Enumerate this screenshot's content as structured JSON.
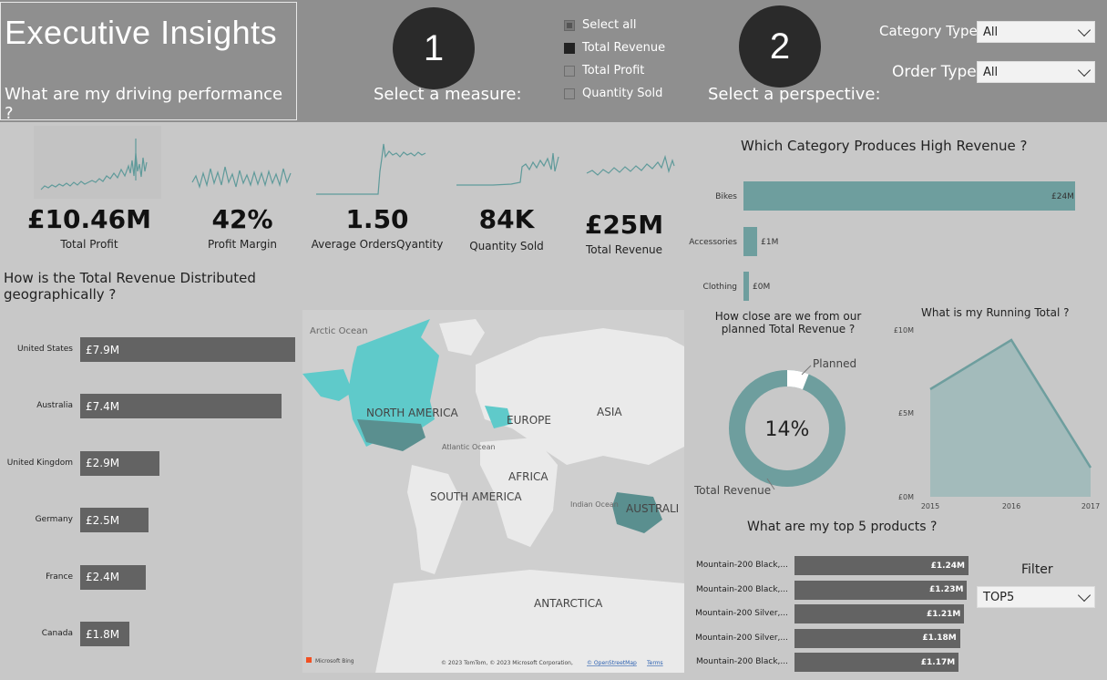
{
  "header": {
    "title": "Executive Insights",
    "subtitle": "What are my driving performance ?",
    "step1_number": "1",
    "step1_label": "Select a measure:",
    "step2_number": "2",
    "step2_label": "Select a perspective:",
    "measures": [
      {
        "label": "Select all",
        "state": "partial"
      },
      {
        "label": "Total Revenue",
        "state": "checked"
      },
      {
        "label": "Total Profit",
        "state": "unchecked"
      },
      {
        "label": "Quantity Sold",
        "state": "unchecked"
      }
    ],
    "category_type_label": "Category Type",
    "category_type_value": "All",
    "order_type_label": "Order Type",
    "order_type_value": "All"
  },
  "kpis": [
    {
      "value": "£10.46M",
      "label": "Total Profit"
    },
    {
      "value": "42%",
      "label": "Profit Margin"
    },
    {
      "value": "1.50",
      "label": "Average OrdersQyantity"
    },
    {
      "value": "84K",
      "label": "Quantity Sold"
    },
    {
      "value": "£25M",
      "label": "Total Revenue"
    }
  ],
  "geo": {
    "title": "How is the Total Revenue Distributed geographically ?",
    "max": 7.9,
    "rows": [
      {
        "country": "United States",
        "value": 7.9,
        "label": "£7.9M"
      },
      {
        "country": "Australia",
        "value": 7.4,
        "label": "£7.4M"
      },
      {
        "country": "United Kingdom",
        "value": 2.9,
        "label": "£2.9M"
      },
      {
        "country": "Germany",
        "value": 2.5,
        "label": "£2.5M"
      },
      {
        "country": "France",
        "value": 2.4,
        "label": "£2.4M"
      },
      {
        "country": "Canada",
        "value": 1.8,
        "label": "£1.8M"
      }
    ]
  },
  "map": {
    "labels": {
      "arctic": "Arctic Ocean",
      "north_america": "NORTH AMERICA",
      "europe": "EUROPE",
      "asia": "ASIA",
      "atlantic": "Atlantic Ocean",
      "africa": "AFRICA",
      "south_america": "SOUTH AMERICA",
      "indian": "Indian Ocean",
      "australia": "AUSTRALI",
      "antarctica": "ANTARCTICA"
    },
    "brand": "Microsoft Bing",
    "copyright": "© 2023 TomTom, © 2023 Microsoft Corporation,",
    "osm_link": "© OpenStreetMap",
    "terms_link": "Terms"
  },
  "category": {
    "title": "Which Category Produces High Revenue ?",
    "max": 24,
    "rows": [
      {
        "name": "Bikes",
        "value": 24,
        "label": "£24M"
      },
      {
        "name": "Accessories",
        "value": 1,
        "label": "£1M"
      },
      {
        "name": "Clothing",
        "value": 0.3,
        "label": "£0M"
      }
    ]
  },
  "planned": {
    "title": "How close are we from our planned Total Revenue ?",
    "center_label": "14%",
    "planned_label": "Planned",
    "revenue_label": "Total Revenue",
    "planned_fraction": 0.06
  },
  "running_total": {
    "title": "What is my Running Total ?",
    "y_ticks": [
      "£10M",
      "£5M",
      "£0M"
    ],
    "x_ticks": [
      "2015",
      "2016",
      "2017"
    ]
  },
  "top_products": {
    "title": "What are my top 5 products ?",
    "max": 1.24,
    "rows": [
      {
        "name": "Mountain-200 Black,...",
        "value": 1.24,
        "label": "£1.24M"
      },
      {
        "name": "Mountain-200 Black,...",
        "value": 1.23,
        "label": "£1.23M"
      },
      {
        "name": "Mountain-200 Silver,...",
        "value": 1.21,
        "label": "£1.21M"
      },
      {
        "name": "Mountain-200 Silver,...",
        "value": 1.18,
        "label": "£1.18M"
      },
      {
        "name": "Mountain-200 Black,...",
        "value": 1.17,
        "label": "£1.17M"
      }
    ],
    "filter_label": "Filter",
    "filter_value": "TOP5"
  },
  "colors": {
    "teal": "#6e9e9e",
    "bar": "#636363",
    "header": "#8f8f8f",
    "background": "#c8c8c8"
  }
}
